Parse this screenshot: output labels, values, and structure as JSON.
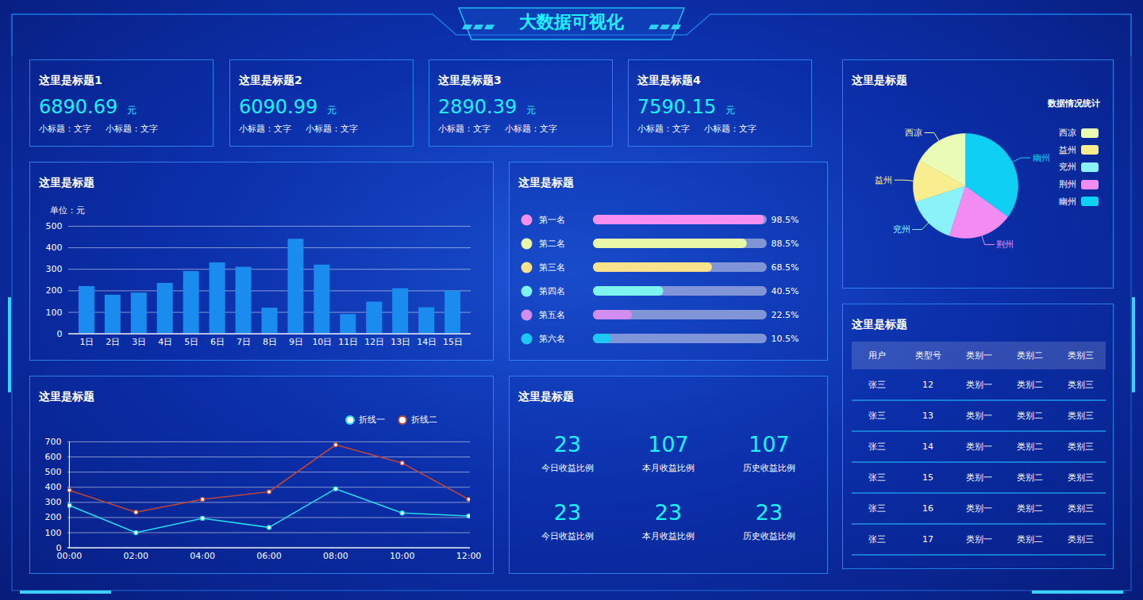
{
  "header": {
    "title": "大数据可视化"
  },
  "kpi_cards": [
    {
      "title": "这里是标题1",
      "value": "6890.69",
      "unit": "元",
      "subtitles": [
        "小标题：文字",
        "小标题：文字"
      ]
    },
    {
      "title": "这里是标题2",
      "value": "6090.99",
      "unit": "元",
      "subtitles": [
        "小标题：文字",
        "小标题：文字"
      ]
    },
    {
      "title": "这里是标题3",
      "value": "2890.39",
      "unit": "元",
      "subtitles": [
        "小标题：文字",
        "小标题：文字"
      ]
    },
    {
      "title": "这里是标题4",
      "value": "7590.15",
      "unit": "元",
      "subtitles": [
        "小标题：文字",
        "小标题：文字"
      ]
    }
  ],
  "chart_data": [
    {
      "type": "bar",
      "title": "这里是标题",
      "y_label": "单位：元",
      "categories": [
        "1日",
        "2日",
        "3日",
        "4日",
        "5日",
        "6日",
        "7日",
        "8日",
        "9日",
        "10日",
        "11日",
        "12日",
        "13日",
        "14日",
        "15日"
      ],
      "values": [
        220,
        180,
        190,
        235,
        290,
        330,
        310,
        120,
        440,
        320,
        90,
        148,
        210,
        122,
        198
      ],
      "color": "#1a8cf0",
      "ylim": [
        0,
        500
      ],
      "yticks": [
        0,
        100,
        200,
        300,
        400,
        500
      ],
      "grid": true
    },
    {
      "type": "bar",
      "orientation": "horizontal",
      "title": "这里是标题",
      "categories": [
        "第一名",
        "第二名",
        "第三名",
        "第四名",
        "第五名",
        "第六名"
      ],
      "values": [
        98.5,
        88.5,
        68.5,
        40.5,
        22.5,
        10.5
      ],
      "value_labels": [
        "98.5%",
        "88.5%",
        "68.5%",
        "40.5%",
        "22.5%",
        "10.5%"
      ],
      "colors": [
        "#f68ff0",
        "#e9f8a8",
        "#f9e28b",
        "#7ff3f0",
        "#d38cf0",
        "#1ec8f5"
      ],
      "xlim": [
        0,
        100
      ],
      "tick_labels": false,
      "data_labels": true
    },
    {
      "type": "line",
      "title": "这里是标题",
      "x": [
        "00:00",
        "02:00",
        "04:00",
        "06:00",
        "08:00",
        "10:00",
        "12:00"
      ],
      "series": [
        {
          "name": "折线一",
          "color": "#27d9e8",
          "marker": "circle",
          "values": [
            280,
            100,
            195,
            135,
            390,
            230,
            210
          ]
        },
        {
          "name": "折线二",
          "color": "#b9463c",
          "marker": "circle",
          "values": [
            380,
            235,
            320,
            370,
            680,
            560,
            320
          ]
        }
      ],
      "ylim": [
        0,
        700
      ],
      "yticks": [
        0,
        100,
        200,
        300,
        400,
        500,
        600,
        700
      ],
      "grid": true,
      "legend": "top-right"
    },
    {
      "type": "pie",
      "title": "这里是标题",
      "legend_title": "数据情况统计",
      "legend": "right",
      "categories": [
        "西凉",
        "益州",
        "兖州",
        "荆州",
        "幽州"
      ],
      "values": [
        17,
        13,
        15,
        20,
        35
      ],
      "colors": [
        "#eafbb5",
        "#f8ee8f",
        "#8cf2fa",
        "#f38cf2",
        "#0fcff4"
      ]
    }
  ],
  "stats_panel": {
    "title": "这里是标题",
    "items": [
      {
        "value": "23",
        "label": "今日收益比例"
      },
      {
        "value": "107",
        "label": "本月收益比例"
      },
      {
        "value": "107",
        "label": "历史收益比例"
      },
      {
        "value": "23",
        "label": "今日收益比例"
      },
      {
        "value": "23",
        "label": "本月收益比例"
      },
      {
        "value": "23",
        "label": "历史收益比例"
      }
    ]
  },
  "table_panel": {
    "title": "这里是标题",
    "header": [
      "用户",
      "类型号",
      "类别一",
      "类别二",
      "类别三"
    ],
    "rows": [
      [
        "张三",
        "12",
        "类别一",
        "类别二",
        "类别三"
      ],
      [
        "张三",
        "13",
        "类别一",
        "类别二",
        "类别三"
      ],
      [
        "张三",
        "14",
        "类别一",
        "类别二",
        "类别三"
      ],
      [
        "张三",
        "15",
        "类别一",
        "类别二",
        "类别三"
      ],
      [
        "张三",
        "16",
        "类别一",
        "类别二",
        "类别三"
      ],
      [
        "张三",
        "17",
        "类别一",
        "类别二",
        "类别三"
      ]
    ]
  }
}
